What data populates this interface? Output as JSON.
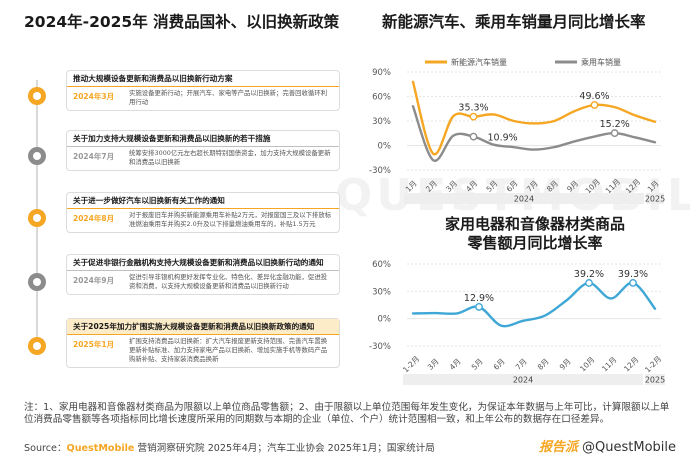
{
  "left": {
    "title": "2024年-2025年 消费品国补、以旧换新政策",
    "items": [
      {
        "color": "orange",
        "highlight": false,
        "heading": "推动大规模设备更新和消费品以旧换新行动方案",
        "date": "2024年3月",
        "text": "实施设备更新行动；开展汽车、家电等产品以旧换新；完善回收循环利用行动"
      },
      {
        "color": "gray",
        "highlight": false,
        "heading": "关于加力支持大规模设备更新和消费品以旧换新的若干措施",
        "date": "2024年7月",
        "text": "统筹安排3000亿元左右超长期特别国债资金，加力支持大规模设备更新和消费品以旧换新"
      },
      {
        "color": "orange",
        "highlight": false,
        "heading": "关于进一步做好汽车以旧换新有关工作的通知",
        "date": "2024年8月",
        "text": "对于报废旧车并购买新能源乘用车补贴2万元，对报废国三及以下排放标准燃油乘用车并购买2.0升及以下排量燃油乘用车的，补贴1.5万元"
      },
      {
        "color": "gray",
        "highlight": false,
        "heading": "关于促进非银行金融机构支持大规模设备更新和消费品以旧换新行动的通知",
        "date": "2024年9月",
        "text": "促进引导非银机构更好发挥专业化、特色化、差异化金融功能，促进投资和消费，以支持大规模设备更新和消费品以旧换新行动"
      },
      {
        "color": "orange",
        "highlight": true,
        "heading": "关于2025年加力扩围实施大规模设备更新和消费品以旧换新政策的通知",
        "date": "2025年1月",
        "text": "扩围支持消费品以旧换新：扩大汽车报废更新支持范围、完善汽车置换更新补贴标准、加力支持家电产品以旧换新、增加实施手机等数码产品购新补贴、支持家装消费品换新"
      }
    ]
  },
  "chart_data": [
    {
      "type": "line",
      "title": "新能源汽车、乘用车销量月同比增长率",
      "categories": [
        "1月",
        "2月",
        "3月",
        "4月",
        "5月",
        "6月",
        "7月",
        "8月",
        "9月",
        "10月",
        "11月",
        "12月",
        "1月"
      ],
      "year_groups": [
        {
          "label": "2024",
          "count": 12
        },
        {
          "label": "2025",
          "count": 1
        }
      ],
      "ylim": [
        -30,
        90
      ],
      "yticks": [
        "90%",
        "60%",
        "30%",
        "0%",
        "-30%"
      ],
      "series": [
        {
          "name": "新能源汽车销量",
          "color": "#f5a623",
          "values": [
            78,
            -10,
            36,
            35.3,
            38,
            30,
            27,
            30,
            42,
            49.6,
            47,
            37,
            29
          ]
        },
        {
          "name": "乘用车销量",
          "color": "#8c8c8c",
          "values": [
            48,
            -18,
            12,
            10.9,
            1,
            -2,
            -5,
            -2,
            5,
            11,
            15.2,
            10,
            4
          ]
        }
      ],
      "annotations": [
        {
          "label": "35.3%",
          "series": 0,
          "index": 3
        },
        {
          "label": "10.9%",
          "series": 1,
          "index": 3
        },
        {
          "label": "49.6%",
          "series": 0,
          "index": 9
        },
        {
          "label": "15.2%",
          "series": 1,
          "index": 10
        }
      ]
    },
    {
      "type": "line",
      "title_line1": "家用电器和音像器材类商品",
      "title_line2": "零售额月同比增长率",
      "categories": [
        "1-2月",
        "3月",
        "4月",
        "5月",
        "6月",
        "7月",
        "8月",
        "9月",
        "10月",
        "11月",
        "12月",
        "1-2月"
      ],
      "year_groups": [
        {
          "label": "2024",
          "count": 11
        },
        {
          "label": "2025",
          "count": 1
        }
      ],
      "ylim": [
        -30,
        60
      ],
      "yticks": [
        "60%",
        "30%",
        "0%",
        "-30%"
      ],
      "series": [
        {
          "name": "家用电器和音像器材类商品零售额",
          "color": "#3fa7d6",
          "values": [
            5.7,
            6.2,
            5.8,
            12.9,
            -7.6,
            -2.4,
            3.4,
            20.5,
            39.2,
            22.2,
            39.3,
            10.9
          ]
        }
      ],
      "annotations": [
        {
          "label": "12.9%",
          "series": 0,
          "index": 3
        },
        {
          "label": "39.2%",
          "series": 0,
          "index": 8
        },
        {
          "label": "39.3%",
          "series": 0,
          "index": 10
        }
      ]
    }
  ],
  "footnote": "注：1、家用电器和音像器材类商品为限额以上单位商品零售额；2、由于限额以上单位范围每年发生变化，为保证本年数据与上年可比，计算限额以上单位消费品零售额等各项指标同比增长速度所采用的同期数与本期的企业（单位、个户）统计范围相一致，和上年公布的数据存在口径差异。",
  "source": {
    "prefix": "Source：",
    "brand": "QuestMobile",
    "rest": " 营销洞察研究院 2025年4月；汽车工业协会 2025年1月；国家统计局"
  },
  "watermark": {
    "logo": "报告派",
    "handle": "@QuestMobile"
  },
  "bg_watermark": "QUESTMOBILE"
}
